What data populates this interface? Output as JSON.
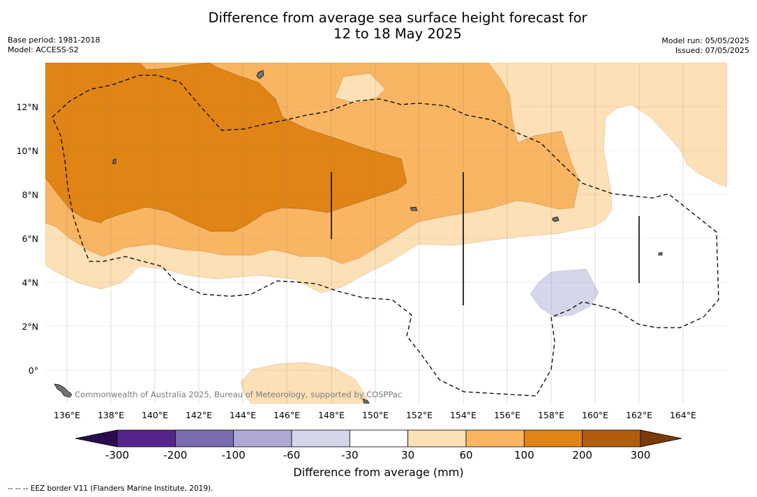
{
  "header": {
    "title_line1": "Difference from average sea surface height forecast for",
    "title_line2": "12 to 18 May 2025",
    "base_period": "Base period: 1981-2018",
    "model": "Model: ACCESS-S2",
    "model_run": "Model run: 05/05/2025",
    "issued": "Issued: 07/05/2025"
  },
  "map": {
    "lon_ticks": [
      "136°E",
      "138°E",
      "140°E",
      "142°E",
      "144°E",
      "146°E",
      "148°E",
      "150°E",
      "152°E",
      "154°E",
      "156°E",
      "158°E",
      "160°E",
      "162°E",
      "164°E"
    ],
    "lat_ticks": [
      "12°N",
      "10°N",
      "8°N",
      "6°N",
      "4°N",
      "2°N",
      "0°"
    ],
    "credit": "© Commonwealth of Australia 2025, Bureau of Meteorology, supported by COSPPac"
  },
  "colorbar": {
    "ticks": [
      "-300",
      "-200",
      "-100",
      "-60",
      "-30",
      "30",
      "60",
      "100",
      "200",
      "300"
    ],
    "colors": [
      "#2b0a4f",
      "#55248a",
      "#7b6cae",
      "#aea9d4",
      "#d6d6ea",
      "#ffffff",
      "#fde0b5",
      "#f9b562",
      "#e08415",
      "#b05d0e",
      "#7a3b06"
    ],
    "label": "Difference from average (mm)"
  },
  "footnote": "--  --  -- EEZ border V11 (Flanders Marine Institute, 2019)."
}
